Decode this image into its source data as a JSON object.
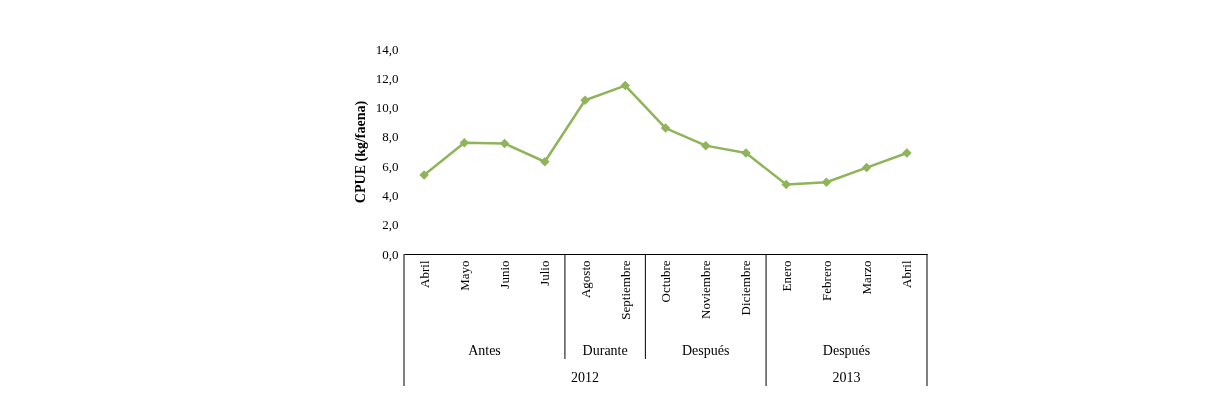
{
  "chart_data": {
    "type": "line",
    "ylabel": "CPUE (kg/faena)",
    "categories": [
      "Abril",
      "Mayo",
      "Junio",
      "Julio",
      "Agosto",
      "Septiembre",
      "Octubre",
      "Noviembre",
      "Diciembre",
      "Enero",
      "Febrero",
      "Marzo",
      "Abril"
    ],
    "series": [
      {
        "color": "#8fb45a",
        "values": [
          5.4,
          7.6,
          7.55,
          6.3,
          10.5,
          11.5,
          8.6,
          7.4,
          6.9,
          4.75,
          4.9,
          5.9,
          6.9
        ]
      }
    ],
    "ylim": [
      0,
      14
    ],
    "yticks": [
      {
        "value": 0,
        "label": "0,0"
      },
      {
        "value": 2,
        "label": "2,0"
      },
      {
        "value": 4,
        "label": "4,0"
      },
      {
        "value": 6,
        "label": "6,0"
      },
      {
        "value": 8,
        "label": "8,0"
      },
      {
        "value": 10,
        "label": "10,0"
      },
      {
        "value": 12,
        "label": "12,0"
      },
      {
        "value": 14,
        "label": "14,0"
      }
    ],
    "marker": "diamond",
    "grid": false,
    "annotations": [
      "Antes",
      "Durante",
      "Después",
      "Después",
      "2012",
      "2013"
    ]
  }
}
